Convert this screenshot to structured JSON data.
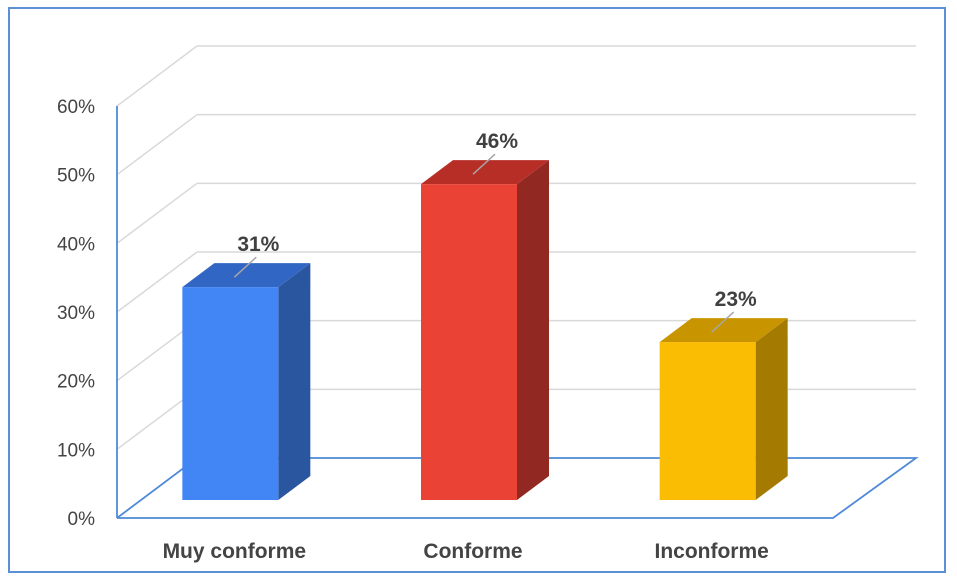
{
  "chart_data": {
    "type": "bar",
    "three_d": true,
    "categories": [
      "Muy conforme",
      "Conforme",
      "Inconforme"
    ],
    "values": [
      31,
      46,
      23
    ],
    "data_labels": [
      "31%",
      "46%",
      "23%"
    ],
    "y_ticks": [
      "0%",
      "10%",
      "20%",
      "30%",
      "40%",
      "50%",
      "60%"
    ],
    "ylim": [
      0,
      60
    ],
    "grid": true,
    "legend": "none",
    "title": "",
    "xlabel": "",
    "ylabel": "",
    "colors": {
      "bars": [
        "#4285f4",
        "#ea4335",
        "#fbbc04"
      ],
      "sides": [
        "#2a56a0",
        "#922822",
        "#a47a00"
      ],
      "tops": [
        "#3266c4",
        "#b72e27",
        "#c89500"
      ],
      "axis": "#4f8ad8",
      "grid": "#d9d9d9",
      "frame": "#5b8fd6"
    }
  }
}
